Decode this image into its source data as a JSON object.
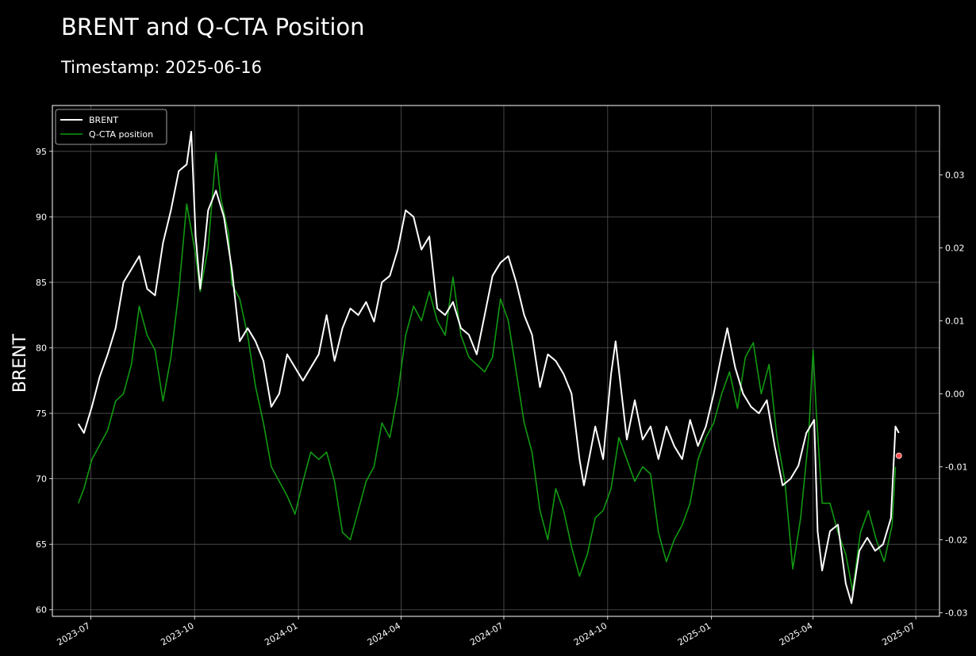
{
  "chart_data": {
    "type": "line",
    "title": "BRENT and Q-CTA Position",
    "subtitle": "Timestamp: 2025-06-16",
    "ylabel": "BRENT",
    "ylabel_right": "",
    "ylim": [
      59.5,
      98.5
    ],
    "y2lim": [
      -0.0305,
      0.0395
    ],
    "xlim": [
      "2023-05-28",
      "2025-07-22"
    ],
    "yticks": [
      60,
      65,
      70,
      75,
      80,
      85,
      90,
      95
    ],
    "y2ticks": [
      -0.03,
      -0.02,
      -0.01,
      0.0,
      0.01,
      0.02,
      0.03
    ],
    "y2tick_labels": [
      "-0.03",
      "-0.02",
      "-0.01",
      "0.00",
      "0.01",
      "0.02",
      "0.03"
    ],
    "xticks": [
      "2023-07-01",
      "2023-10-01",
      "2024-01-01",
      "2024-04-01",
      "2024-07-01",
      "2024-10-01",
      "2025-01-01",
      "2025-04-01",
      "2025-07-01"
    ],
    "xtick_labels": [
      "2023-07",
      "2023-10",
      "2024-01",
      "2024-04",
      "2024-07",
      "2024-10",
      "2025-01",
      "2025-04",
      "2025-07"
    ],
    "grid": true,
    "legend_position": "top-left",
    "colors": {
      "brent": "#ffffff",
      "cta": "#119911",
      "marker": "#ff4d4d"
    },
    "series": [
      {
        "name": "BRENT",
        "axis": "left",
        "points": [
          [
            "2023-06-20",
            74.2
          ],
          [
            "2023-06-25",
            73.5
          ],
          [
            "2023-07-02",
            75.5
          ],
          [
            "2023-07-09",
            77.8
          ],
          [
            "2023-07-16",
            79.5
          ],
          [
            "2023-07-23",
            81.5
          ],
          [
            "2023-07-30",
            85.0
          ],
          [
            "2023-08-06",
            86.0
          ],
          [
            "2023-08-13",
            87.0
          ],
          [
            "2023-08-20",
            84.5
          ],
          [
            "2023-08-27",
            84.0
          ],
          [
            "2023-09-03",
            88.0
          ],
          [
            "2023-09-10",
            90.5
          ],
          [
            "2023-09-17",
            93.5
          ],
          [
            "2023-09-24",
            94.0
          ],
          [
            "2023-09-28",
            96.5
          ],
          [
            "2023-10-02",
            88.5
          ],
          [
            "2023-10-06",
            84.5
          ],
          [
            "2023-10-13",
            90.5
          ],
          [
            "2023-10-20",
            92.0
          ],
          [
            "2023-10-27",
            90.0
          ],
          [
            "2023-11-03",
            86.0
          ],
          [
            "2023-11-10",
            80.5
          ],
          [
            "2023-11-17",
            81.5
          ],
          [
            "2023-11-24",
            80.5
          ],
          [
            "2023-12-01",
            79.0
          ],
          [
            "2023-12-08",
            75.5
          ],
          [
            "2023-12-15",
            76.5
          ],
          [
            "2023-12-22",
            79.5
          ],
          [
            "2023-12-29",
            78.5
          ],
          [
            "2024-01-05",
            77.5
          ],
          [
            "2024-01-12",
            78.5
          ],
          [
            "2024-01-19",
            79.5
          ],
          [
            "2024-01-26",
            82.5
          ],
          [
            "2024-02-02",
            79.0
          ],
          [
            "2024-02-09",
            81.5
          ],
          [
            "2024-02-16",
            83.0
          ],
          [
            "2024-02-23",
            82.5
          ],
          [
            "2024-03-01",
            83.5
          ],
          [
            "2024-03-08",
            82.0
          ],
          [
            "2024-03-15",
            85.0
          ],
          [
            "2024-03-22",
            85.5
          ],
          [
            "2024-03-29",
            87.5
          ],
          [
            "2024-04-05",
            90.5
          ],
          [
            "2024-04-12",
            90.0
          ],
          [
            "2024-04-19",
            87.5
          ],
          [
            "2024-04-26",
            88.5
          ],
          [
            "2024-05-03",
            83.0
          ],
          [
            "2024-05-10",
            82.5
          ],
          [
            "2024-05-17",
            83.5
          ],
          [
            "2024-05-24",
            81.5
          ],
          [
            "2024-05-31",
            81.0
          ],
          [
            "2024-06-07",
            79.5
          ],
          [
            "2024-06-14",
            82.5
          ],
          [
            "2024-06-21",
            85.5
          ],
          [
            "2024-06-28",
            86.5
          ],
          [
            "2024-07-05",
            87.0
          ],
          [
            "2024-07-12",
            85.0
          ],
          [
            "2024-07-19",
            82.5
          ],
          [
            "2024-07-26",
            81.0
          ],
          [
            "2024-08-02",
            77.0
          ],
          [
            "2024-08-09",
            79.5
          ],
          [
            "2024-08-16",
            79.0
          ],
          [
            "2024-08-23",
            78.0
          ],
          [
            "2024-08-30",
            76.5
          ],
          [
            "2024-09-06",
            71.5
          ],
          [
            "2024-09-10",
            69.5
          ],
          [
            "2024-09-20",
            74.0
          ],
          [
            "2024-09-27",
            71.5
          ],
          [
            "2024-10-04",
            78.0
          ],
          [
            "2024-10-08",
            80.5
          ],
          [
            "2024-10-18",
            73.0
          ],
          [
            "2024-10-25",
            76.0
          ],
          [
            "2024-11-01",
            73.0
          ],
          [
            "2024-11-08",
            74.0
          ],
          [
            "2024-11-15",
            71.5
          ],
          [
            "2024-11-22",
            74.0
          ],
          [
            "2024-11-29",
            72.5
          ],
          [
            "2024-12-06",
            71.5
          ],
          [
            "2024-12-13",
            74.5
          ],
          [
            "2024-12-20",
            72.5
          ],
          [
            "2024-12-27",
            74.0
          ],
          [
            "2025-01-03",
            76.5
          ],
          [
            "2025-01-10",
            79.5
          ],
          [
            "2025-01-15",
            81.5
          ],
          [
            "2025-01-22",
            78.5
          ],
          [
            "2025-01-29",
            76.5
          ],
          [
            "2025-02-05",
            75.5
          ],
          [
            "2025-02-12",
            75.0
          ],
          [
            "2025-02-19",
            76.0
          ],
          [
            "2025-02-26",
            72.5
          ],
          [
            "2025-03-05",
            69.5
          ],
          [
            "2025-03-12",
            70.0
          ],
          [
            "2025-03-19",
            71.0
          ],
          [
            "2025-03-26",
            73.5
          ],
          [
            "2025-04-02",
            74.5
          ],
          [
            "2025-04-05",
            66.0
          ],
          [
            "2025-04-09",
            63.0
          ],
          [
            "2025-04-16",
            66.0
          ],
          [
            "2025-04-23",
            66.5
          ],
          [
            "2025-04-30",
            62.0
          ],
          [
            "2025-05-05",
            60.5
          ],
          [
            "2025-05-12",
            64.5
          ],
          [
            "2025-05-19",
            65.5
          ],
          [
            "2025-05-26",
            64.5
          ],
          [
            "2025-06-02",
            65.0
          ],
          [
            "2025-06-09",
            67.0
          ],
          [
            "2025-06-13",
            74.0
          ],
          [
            "2025-06-16",
            73.5
          ]
        ]
      },
      {
        "name": "Q-CTA position",
        "axis": "right",
        "points": [
          [
            "2023-06-20",
            -0.015
          ],
          [
            "2023-06-25",
            -0.013
          ],
          [
            "2023-07-02",
            -0.009
          ],
          [
            "2023-07-09",
            -0.007
          ],
          [
            "2023-07-16",
            -0.005
          ],
          [
            "2023-07-23",
            -0.001
          ],
          [
            "2023-07-30",
            0.0
          ],
          [
            "2023-08-06",
            0.004
          ],
          [
            "2023-08-13",
            0.012
          ],
          [
            "2023-08-20",
            0.008
          ],
          [
            "2023-08-27",
            0.006
          ],
          [
            "2023-09-03",
            -0.001
          ],
          [
            "2023-09-10",
            0.005
          ],
          [
            "2023-09-17",
            0.014
          ],
          [
            "2023-09-24",
            0.026
          ],
          [
            "2023-10-02",
            0.019
          ],
          [
            "2023-10-06",
            0.014
          ],
          [
            "2023-10-13",
            0.02
          ],
          [
            "2023-10-20",
            0.033
          ],
          [
            "2023-10-24",
            0.027
          ],
          [
            "2023-10-31",
            0.022
          ],
          [
            "2023-11-03",
            0.015
          ],
          [
            "2023-11-10",
            0.013
          ],
          [
            "2023-11-17",
            0.008
          ],
          [
            "2023-11-24",
            0.001
          ],
          [
            "2023-12-01",
            -0.004
          ],
          [
            "2023-12-08",
            -0.01
          ],
          [
            "2023-12-15",
            -0.012
          ],
          [
            "2023-12-22",
            -0.014
          ],
          [
            "2023-12-29",
            -0.0165
          ],
          [
            "2024-01-05",
            -0.012
          ],
          [
            "2024-01-12",
            -0.008
          ],
          [
            "2024-01-19",
            -0.009
          ],
          [
            "2024-01-26",
            -0.008
          ],
          [
            "2024-02-02",
            -0.012
          ],
          [
            "2024-02-09",
            -0.019
          ],
          [
            "2024-02-16",
            -0.02
          ],
          [
            "2024-02-23",
            -0.016
          ],
          [
            "2024-03-01",
            -0.012
          ],
          [
            "2024-03-08",
            -0.01
          ],
          [
            "2024-03-15",
            -0.004
          ],
          [
            "2024-03-22",
            -0.006
          ],
          [
            "2024-03-29",
            0.0
          ],
          [
            "2024-04-05",
            0.008
          ],
          [
            "2024-04-12",
            0.012
          ],
          [
            "2024-04-19",
            0.01
          ],
          [
            "2024-04-26",
            0.014
          ],
          [
            "2024-05-03",
            0.01
          ],
          [
            "2024-05-10",
            0.008
          ],
          [
            "2024-05-17",
            0.016
          ],
          [
            "2024-05-24",
            0.008
          ],
          [
            "2024-05-31",
            0.005
          ],
          [
            "2024-06-07",
            0.004
          ],
          [
            "2024-06-14",
            0.003
          ],
          [
            "2024-06-21",
            0.005
          ],
          [
            "2024-06-28",
            0.013
          ],
          [
            "2024-07-05",
            0.01
          ],
          [
            "2024-07-12",
            0.003
          ],
          [
            "2024-07-19",
            -0.004
          ],
          [
            "2024-07-26",
            -0.008
          ],
          [
            "2024-08-02",
            -0.016
          ],
          [
            "2024-08-09",
            -0.02
          ],
          [
            "2024-08-16",
            -0.013
          ],
          [
            "2024-08-23",
            -0.016
          ],
          [
            "2024-08-30",
            -0.021
          ],
          [
            "2024-09-06",
            -0.025
          ],
          [
            "2024-09-13",
            -0.022
          ],
          [
            "2024-09-20",
            -0.017
          ],
          [
            "2024-09-27",
            -0.016
          ],
          [
            "2024-10-04",
            -0.013
          ],
          [
            "2024-10-11",
            -0.006
          ],
          [
            "2024-10-18",
            -0.009
          ],
          [
            "2024-10-25",
            -0.012
          ],
          [
            "2024-11-01",
            -0.01
          ],
          [
            "2024-11-08",
            -0.011
          ],
          [
            "2024-11-15",
            -0.019
          ],
          [
            "2024-11-22",
            -0.023
          ],
          [
            "2024-11-29",
            -0.02
          ],
          [
            "2024-12-06",
            -0.018
          ],
          [
            "2024-12-13",
            -0.015
          ],
          [
            "2024-12-20",
            -0.009
          ],
          [
            "2024-12-27",
            -0.006
          ],
          [
            "2025-01-03",
            -0.004
          ],
          [
            "2025-01-10",
            0.0
          ],
          [
            "2025-01-17",
            0.003
          ],
          [
            "2025-01-24",
            -0.002
          ],
          [
            "2025-01-31",
            0.005
          ],
          [
            "2025-02-07",
            0.007
          ],
          [
            "2025-02-14",
            0.0
          ],
          [
            "2025-02-21",
            0.004
          ],
          [
            "2025-02-28",
            -0.006
          ],
          [
            "2025-03-07",
            -0.012
          ],
          [
            "2025-03-14",
            -0.024
          ],
          [
            "2025-03-21",
            -0.017
          ],
          [
            "2025-03-28",
            -0.006
          ],
          [
            "2025-04-01",
            0.006
          ],
          [
            "2025-04-04",
            -0.003
          ],
          [
            "2025-04-09",
            -0.015
          ],
          [
            "2025-04-16",
            -0.015
          ],
          [
            "2025-04-23",
            -0.019
          ],
          [
            "2025-04-30",
            -0.022
          ],
          [
            "2025-05-06",
            -0.027
          ],
          [
            "2025-05-13",
            -0.019
          ],
          [
            "2025-05-20",
            -0.016
          ],
          [
            "2025-05-27",
            -0.02
          ],
          [
            "2025-06-03",
            -0.023
          ],
          [
            "2025-06-10",
            -0.018
          ],
          [
            "2025-06-13",
            -0.01
          ]
        ]
      }
    ],
    "marker": {
      "x": "2025-06-16",
      "y2": -0.0085
    }
  }
}
